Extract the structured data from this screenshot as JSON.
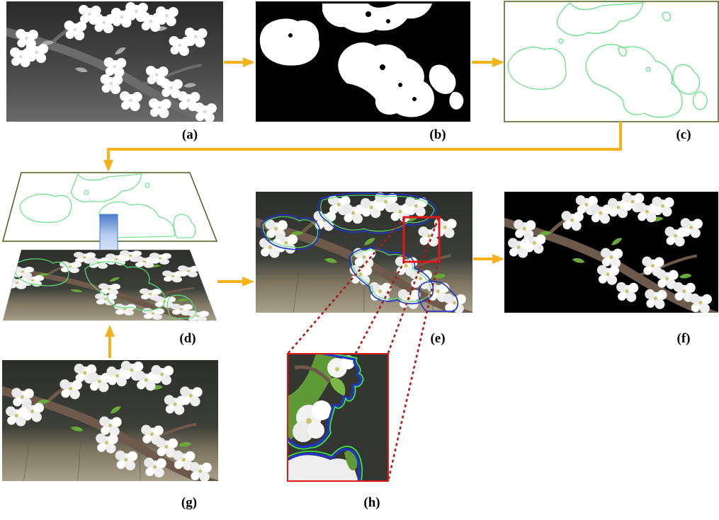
{
  "figure": {
    "panels": [
      {
        "id": "a",
        "label": "(a)",
        "content": "grayscale-image"
      },
      {
        "id": "b",
        "label": "(b)",
        "content": "binary-mask"
      },
      {
        "id": "c",
        "label": "(c)",
        "content": "contour-outline"
      },
      {
        "id": "d",
        "label": "(d)",
        "content": "contour-overlay-stack"
      },
      {
        "id": "e",
        "label": "(e)",
        "content": "boundary-overlay-image"
      },
      {
        "id": "f",
        "label": "(f)",
        "content": "segmented-result"
      },
      {
        "id": "g",
        "label": "(g)",
        "content": "rgb-image"
      },
      {
        "id": "h",
        "label": "(h)",
        "content": "zoomed-detail"
      }
    ],
    "colors": {
      "arrow": "#f5b21c",
      "contour": "#58e07a",
      "boundary_blue": "#2233cc",
      "zoom_box": "#e01818",
      "zoom_lines": "#b01818",
      "outline_frame": "#4a5e1a"
    }
  }
}
